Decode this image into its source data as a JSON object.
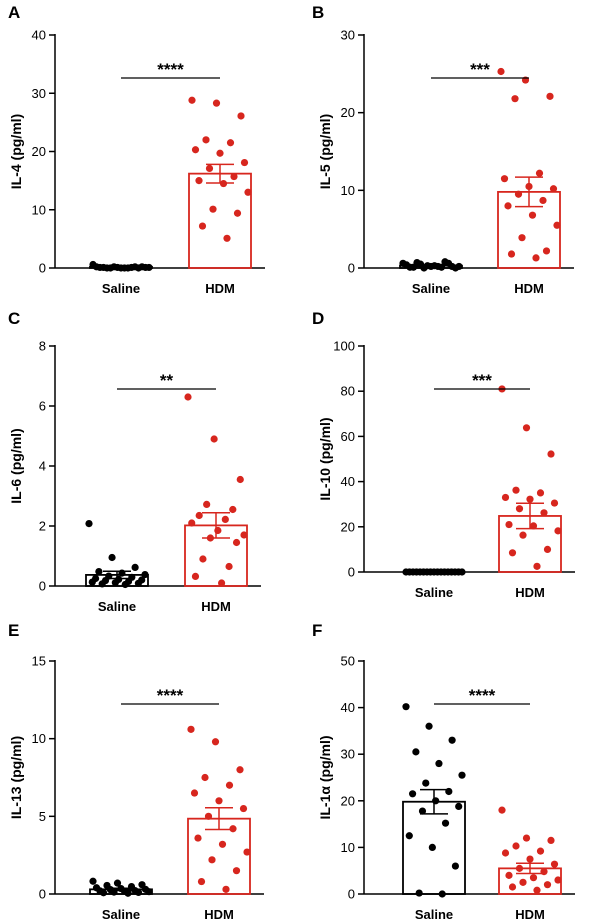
{
  "colors": {
    "saline": "#000000",
    "hdm": "#d7261e"
  },
  "chart_data": [
    {
      "type": "bar",
      "panel": "A",
      "ylabel": "IL-4 (pg/ml)",
      "categories": [
        "Saline",
        "HDM"
      ],
      "ylim": [
        0,
        40
      ],
      "yticks": [
        0,
        10,
        20,
        30,
        40
      ],
      "significance": "****",
      "series": [
        {
          "values": [
            0.2,
            16.2
          ],
          "sem": [
            0.1,
            1.6
          ],
          "category": "Saline",
          "points": [
            0.6,
            0.1,
            0.2,
            0.0,
            0.1,
            0.2,
            0.0,
            0.1,
            0.0,
            0.2,
            0.1,
            0.0,
            0.1,
            0.2,
            0.0,
            0.1,
            0.0
          ]
        },
        {
          "category": "HDM",
          "points": [
            28.8,
            28.3,
            26.1,
            22.0,
            21.5,
            20.3,
            19.7,
            18.1,
            17.1,
            15.7,
            15.0,
            14.5,
            13.0,
            10.1,
            9.4,
            7.2,
            5.1
          ]
        }
      ]
    },
    {
      "type": "bar",
      "panel": "B",
      "ylabel": "IL-5 (pg/ml)",
      "categories": [
        "Saline",
        "HDM"
      ],
      "ylim": [
        0,
        30
      ],
      "yticks": [
        0,
        10,
        20,
        30
      ],
      "significance": "***",
      "series": [
        {
          "values": [
            0.3,
            9.8
          ],
          "sem": [
            0.1,
            1.9
          ],
          "category": "Saline",
          "points": [
            0.6,
            0.3,
            0.2,
            0.7,
            0.1,
            0.4,
            0.2,
            0.0,
            0.5,
            0.8,
            0.1,
            0.3,
            0.2,
            0.0,
            0.6,
            0.1,
            0.2
          ]
        },
        {
          "category": "HDM",
          "points": [
            25.3,
            24.2,
            22.1,
            21.8,
            12.2,
            11.5,
            10.5,
            10.2,
            9.5,
            8.7,
            8.0,
            6.8,
            5.5,
            3.9,
            2.2,
            1.8,
            1.3
          ]
        }
      ]
    },
    {
      "type": "bar",
      "panel": "C",
      "ylabel": "IL-6 (pg/ml)",
      "categories": [
        "Saline",
        "HDM"
      ],
      "ylim": [
        0,
        8
      ],
      "yticks": [
        0,
        2,
        4,
        6,
        8
      ],
      "significance": "**",
      "series": [
        {
          "values": [
            0.37,
            2.02
          ],
          "sem": [
            0.12,
            0.42
          ],
          "category": "Saline",
          "points": [
            2.08,
            0.95,
            0.62,
            0.48,
            0.43,
            0.38,
            0.33,
            0.29,
            0.25,
            0.22,
            0.2,
            0.18,
            0.15,
            0.13,
            0.11,
            0.09,
            0.07,
            0.05
          ]
        },
        {
          "category": "HDM",
          "points": [
            6.3,
            4.9,
            3.55,
            2.72,
            2.55,
            2.35,
            2.22,
            2.1,
            1.85,
            1.7,
            1.6,
            1.45,
            0.9,
            0.65,
            0.32,
            0.1
          ]
        }
      ]
    },
    {
      "type": "bar",
      "panel": "D",
      "ylabel": "IL-10 (pg/ml)",
      "categories": [
        "Saline",
        "HDM"
      ],
      "ylim": [
        0,
        100
      ],
      "yticks": [
        0,
        20,
        40,
        60,
        80,
        100
      ],
      "significance": "***",
      "series": [
        {
          "values": [
            0.0,
            24.8
          ],
          "sem": [
            0.0,
            5.6
          ],
          "category": "Saline",
          "points": [
            0,
            0,
            0,
            0,
            0,
            0,
            0,
            0,
            0,
            0,
            0,
            0,
            0,
            0,
            0,
            0,
            0
          ]
        },
        {
          "category": "HDM",
          "points": [
            81.0,
            63.8,
            52.2,
            36.2,
            35.0,
            33.0,
            32.2,
            30.5,
            28.0,
            26.2,
            21.0,
            20.4,
            18.2,
            16.3,
            10.0,
            8.5,
            2.5
          ]
        }
      ]
    },
    {
      "type": "bar",
      "panel": "E",
      "ylabel": "IL-13 (pg/ml)",
      "categories": [
        "Saline",
        "HDM"
      ],
      "ylim": [
        0,
        15
      ],
      "yticks": [
        0,
        5,
        10,
        15
      ],
      "significance": "****",
      "series": [
        {
          "values": [
            0.3,
            4.85
          ],
          "sem": [
            0.07,
            0.7
          ],
          "category": "Saline",
          "points": [
            0.82,
            0.7,
            0.6,
            0.55,
            0.48,
            0.4,
            0.35,
            0.3,
            0.28,
            0.22,
            0.2,
            0.18,
            0.15,
            0.12,
            0.1,
            0.08,
            0.05
          ]
        },
        {
          "category": "HDM",
          "points": [
            10.6,
            9.8,
            8.0,
            7.5,
            7.0,
            6.5,
            6.0,
            5.5,
            5.0,
            4.2,
            3.6,
            3.2,
            2.7,
            2.2,
            1.5,
            0.8,
            0.3
          ]
        }
      ]
    },
    {
      "type": "bar",
      "panel": "F",
      "ylabel": "IL-1α (pg/ml)",
      "categories": [
        "Saline",
        "HDM"
      ],
      "ylim": [
        0,
        50
      ],
      "yticks": [
        0,
        10,
        20,
        30,
        40,
        50
      ],
      "significance": "****",
      "series": [
        {
          "values": [
            19.8,
            5.5
          ],
          "sem": [
            2.6,
            1.1
          ],
          "category": "Saline",
          "points": [
            40.2,
            36.0,
            33.0,
            30.5,
            28.0,
            25.5,
            23.8,
            22.0,
            21.5,
            20.0,
            18.8,
            17.8,
            15.2,
            12.5,
            10.0,
            6.0,
            0.2,
            0.0
          ]
        },
        {
          "category": "HDM",
          "points": [
            18.0,
            12.0,
            11.5,
            10.3,
            9.2,
            8.8,
            7.5,
            6.4,
            5.5,
            4.8,
            4.0,
            3.5,
            3.0,
            2.5,
            2.0,
            1.5,
            0.8
          ]
        }
      ]
    }
  ]
}
